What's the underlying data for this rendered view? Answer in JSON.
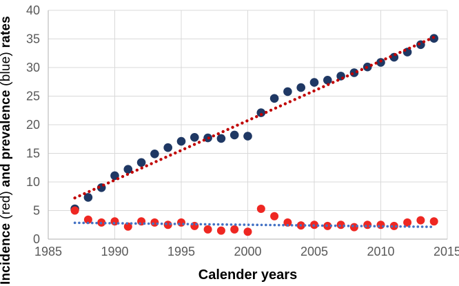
{
  "chart": {
    "xlabel": "Calender years",
    "ylabel": {
      "b1": "Incidence",
      "n1": "(red)",
      "b2": "and prevalence",
      "n2": "(blue)",
      "b3": "rates"
    }
  },
  "chart_data": {
    "type": "scatter",
    "title": "",
    "xlabel": "Calender years",
    "ylabel": "Incidence (red) and prevalence (blue) rates",
    "xlim": [
      1985,
      2015
    ],
    "ylim": [
      0,
      40
    ],
    "x_ticks": [
      1985,
      1990,
      1995,
      2000,
      2005,
      2010,
      2015
    ],
    "y_ticks": [
      0,
      5,
      10,
      15,
      20,
      25,
      30,
      35,
      40
    ],
    "grid": true,
    "legend": "none",
    "colors": {
      "grid": "#d9d9d9",
      "axis": "#bfbfbf",
      "tick_text": "#595959"
    },
    "x": [
      1987,
      1988,
      1989,
      1990,
      1991,
      1992,
      1993,
      1994,
      1995,
      1996,
      1997,
      1998,
      1999,
      2000,
      2001,
      2002,
      2003,
      2004,
      2005,
      2006,
      2007,
      2008,
      2009,
      2010,
      2011,
      2012,
      2013,
      2014
    ],
    "series": [
      {
        "id": "prevalence",
        "name": "Prevalence (blue)",
        "color": "#1f3864",
        "marker_radius": 6.3,
        "x": [
          1987,
          1988,
          1989,
          1990,
          1991,
          1992,
          1993,
          1994,
          1995,
          1996,
          1997,
          1998,
          1999,
          2000,
          2001,
          2002,
          2003,
          2004,
          2005,
          2006,
          2007,
          2008,
          2009,
          2010,
          2011,
          2012,
          2013,
          2014
        ],
        "values": [
          5.3,
          7.3,
          9.0,
          11.1,
          12.2,
          13.4,
          14.9,
          16.0,
          17.1,
          17.8,
          17.7,
          17.6,
          18.2,
          18.0,
          22.1,
          24.6,
          25.8,
          26.5,
          27.4,
          27.8,
          28.5,
          29.1,
          30.1,
          30.9,
          31.8,
          32.7,
          34.0,
          35.1
        ]
      },
      {
        "id": "incidence",
        "name": "Incidence (red)",
        "color": "#ee2722",
        "marker_radius": 6.0,
        "x": [
          1987,
          1988,
          1989,
          1990,
          1991,
          1992,
          1993,
          1994,
          1995,
          1996,
          1997,
          1998,
          1999,
          2000,
          2001,
          2002,
          2003,
          2004,
          2005,
          2006,
          2007,
          2008,
          2009,
          2010,
          2011,
          2012,
          2013,
          2014
        ],
        "values": [
          5.0,
          3.4,
          2.9,
          3.1,
          2.2,
          3.1,
          2.9,
          2.5,
          2.9,
          2.3,
          1.7,
          1.5,
          1.7,
          1.3,
          5.3,
          4.0,
          2.9,
          2.4,
          2.5,
          2.3,
          2.5,
          2.1,
          2.5,
          2.5,
          2.3,
          2.9,
          3.3,
          3.1
        ]
      }
    ],
    "trendlines": [
      {
        "id": "prevalence-trendline",
        "for_series": "prevalence",
        "color": "#c00000",
        "style": "dotted",
        "width": 4.3,
        "gap": 7.5,
        "points": [
          [
            1987,
            7.2
          ],
          [
            2014,
            35.3
          ]
        ]
      },
      {
        "id": "incidence-trendline",
        "for_series": "incidence",
        "color": "#4472c4",
        "style": "dotted",
        "width": 3.6,
        "gap": 6.2,
        "points": [
          [
            1987,
            2.85
          ],
          [
            2014,
            2.15
          ]
        ]
      }
    ]
  }
}
